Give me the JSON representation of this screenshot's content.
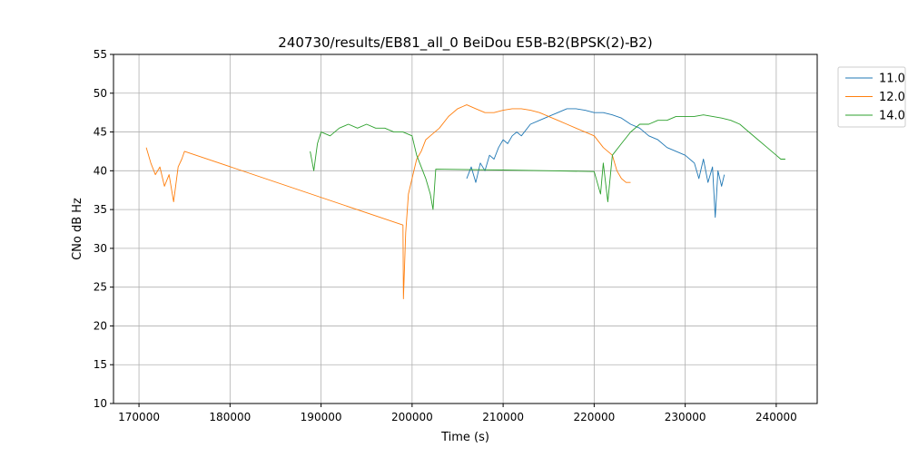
{
  "chart_data": {
    "type": "line",
    "title": "240730/results/EB81_all_0 BeiDou E5B-B2(BPSK(2)-B2)",
    "xlabel": "Time (s)",
    "ylabel": "CNo dB Hz",
    "xlim": [
      167200,
      244500
    ],
    "ylim": [
      10,
      55
    ],
    "x_ticks": [
      170000,
      180000,
      190000,
      200000,
      210000,
      220000,
      230000,
      240000
    ],
    "x_tick_labels": [
      "170000",
      "180000",
      "190000",
      "200000",
      "210000",
      "220000",
      "230000",
      "240000"
    ],
    "y_ticks": [
      10,
      15,
      20,
      25,
      30,
      35,
      40,
      45,
      50,
      55
    ],
    "y_tick_labels": [
      "10",
      "15",
      "20",
      "25",
      "30",
      "35",
      "40",
      "45",
      "50",
      "55"
    ],
    "grid": true,
    "legend_placement": "outside-top-right",
    "series": [
      {
        "name": "11.0",
        "color": "#1f77b4",
        "points": [
          [
            206000,
            39.0
          ],
          [
            206500,
            40.5
          ],
          [
            207000,
            38.5
          ],
          [
            207500,
            41.0
          ],
          [
            208000,
            40.0
          ],
          [
            208500,
            42.0
          ],
          [
            209000,
            41.5
          ],
          [
            209500,
            43.0
          ],
          [
            210000,
            44.0
          ],
          [
            210500,
            43.5
          ],
          [
            211000,
            44.5
          ],
          [
            211500,
            45.0
          ],
          [
            212000,
            44.5
          ],
          [
            213000,
            46.0
          ],
          [
            214000,
            46.5
          ],
          [
            215000,
            47.0
          ],
          [
            216000,
            47.5
          ],
          [
            217000,
            48.0
          ],
          [
            218000,
            48.0
          ],
          [
            219000,
            47.8
          ],
          [
            220000,
            47.5
          ],
          [
            221000,
            47.5
          ],
          [
            222000,
            47.2
          ],
          [
            223000,
            46.8
          ],
          [
            224000,
            46.0
          ],
          [
            225000,
            45.5
          ],
          [
            226000,
            44.5
          ],
          [
            227000,
            44.0
          ],
          [
            228000,
            43.0
          ],
          [
            229000,
            42.5
          ],
          [
            230000,
            42.0
          ],
          [
            231000,
            41.0
          ],
          [
            231500,
            39.0
          ],
          [
            232000,
            41.5
          ],
          [
            232500,
            38.5
          ],
          [
            233000,
            40.5
          ],
          [
            233300,
            34.0
          ],
          [
            233600,
            40.0
          ],
          [
            234000,
            38.0
          ],
          [
            234300,
            39.5
          ]
        ]
      },
      {
        "name": "12.0",
        "color": "#ff7f0e",
        "points": [
          [
            170800,
            43.0
          ],
          [
            171300,
            41.0
          ],
          [
            171800,
            39.5
          ],
          [
            172300,
            40.5
          ],
          [
            172800,
            38.0
          ],
          [
            173300,
            39.5
          ],
          [
            173800,
            36.0
          ],
          [
            174300,
            40.5
          ],
          [
            174700,
            41.5
          ],
          [
            175000,
            42.5
          ],
          [
            199000,
            33.0
          ],
          [
            199050,
            23.5
          ],
          [
            199300,
            32.0
          ],
          [
            199600,
            37.0
          ],
          [
            200000,
            39.0
          ],
          [
            200500,
            41.5
          ],
          [
            201000,
            42.5
          ],
          [
            201500,
            44.0
          ],
          [
            202000,
            44.5
          ],
          [
            203000,
            45.5
          ],
          [
            204000,
            47.0
          ],
          [
            205000,
            48.0
          ],
          [
            206000,
            48.5
          ],
          [
            207000,
            48.0
          ],
          [
            208000,
            47.5
          ],
          [
            209000,
            47.5
          ],
          [
            210000,
            47.8
          ],
          [
            211000,
            48.0
          ],
          [
            212000,
            48.0
          ],
          [
            213000,
            47.8
          ],
          [
            214000,
            47.5
          ],
          [
            215000,
            47.0
          ],
          [
            216000,
            46.5
          ],
          [
            217000,
            46.0
          ],
          [
            218000,
            45.5
          ],
          [
            219000,
            45.0
          ],
          [
            220000,
            44.5
          ],
          [
            221000,
            43.0
          ],
          [
            222000,
            42.0
          ],
          [
            222500,
            40.0
          ],
          [
            223000,
            39.0
          ],
          [
            223500,
            38.5
          ],
          [
            224000,
            38.5
          ]
        ]
      },
      {
        "name": "14.0",
        "color": "#2ca02c",
        "points": [
          [
            188800,
            42.5
          ],
          [
            189200,
            40.0
          ],
          [
            189600,
            43.5
          ],
          [
            190000,
            45.0
          ],
          [
            191000,
            44.5
          ],
          [
            192000,
            45.5
          ],
          [
            193000,
            46.0
          ],
          [
            194000,
            45.5
          ],
          [
            195000,
            46.0
          ],
          [
            196000,
            45.5
          ],
          [
            197000,
            45.5
          ],
          [
            198000,
            45.0
          ],
          [
            199000,
            45.0
          ],
          [
            200000,
            44.5
          ],
          [
            200500,
            42.0
          ],
          [
            201000,
            40.5
          ],
          [
            201500,
            39.0
          ],
          [
            202000,
            37.0
          ],
          [
            202300,
            35.0
          ],
          [
            202600,
            40.2
          ],
          [
            210000,
            40.1
          ],
          [
            215000,
            40.0
          ],
          [
            220000,
            39.9
          ],
          [
            220700,
            37.0
          ],
          [
            221000,
            41.0
          ],
          [
            221500,
            36.0
          ],
          [
            222000,
            42.0
          ],
          [
            223000,
            43.5
          ],
          [
            224000,
            45.0
          ],
          [
            225000,
            46.0
          ],
          [
            226000,
            46.0
          ],
          [
            227000,
            46.5
          ],
          [
            228000,
            46.5
          ],
          [
            229000,
            47.0
          ],
          [
            230000,
            47.0
          ],
          [
            231000,
            47.0
          ],
          [
            232000,
            47.2
          ],
          [
            233000,
            47.0
          ],
          [
            234000,
            46.8
          ],
          [
            235000,
            46.5
          ],
          [
            236000,
            46.0
          ],
          [
            237000,
            45.0
          ],
          [
            238000,
            44.0
          ],
          [
            239000,
            43.0
          ],
          [
            240000,
            42.0
          ],
          [
            240500,
            41.5
          ],
          [
            241000,
            41.5
          ]
        ]
      }
    ]
  }
}
